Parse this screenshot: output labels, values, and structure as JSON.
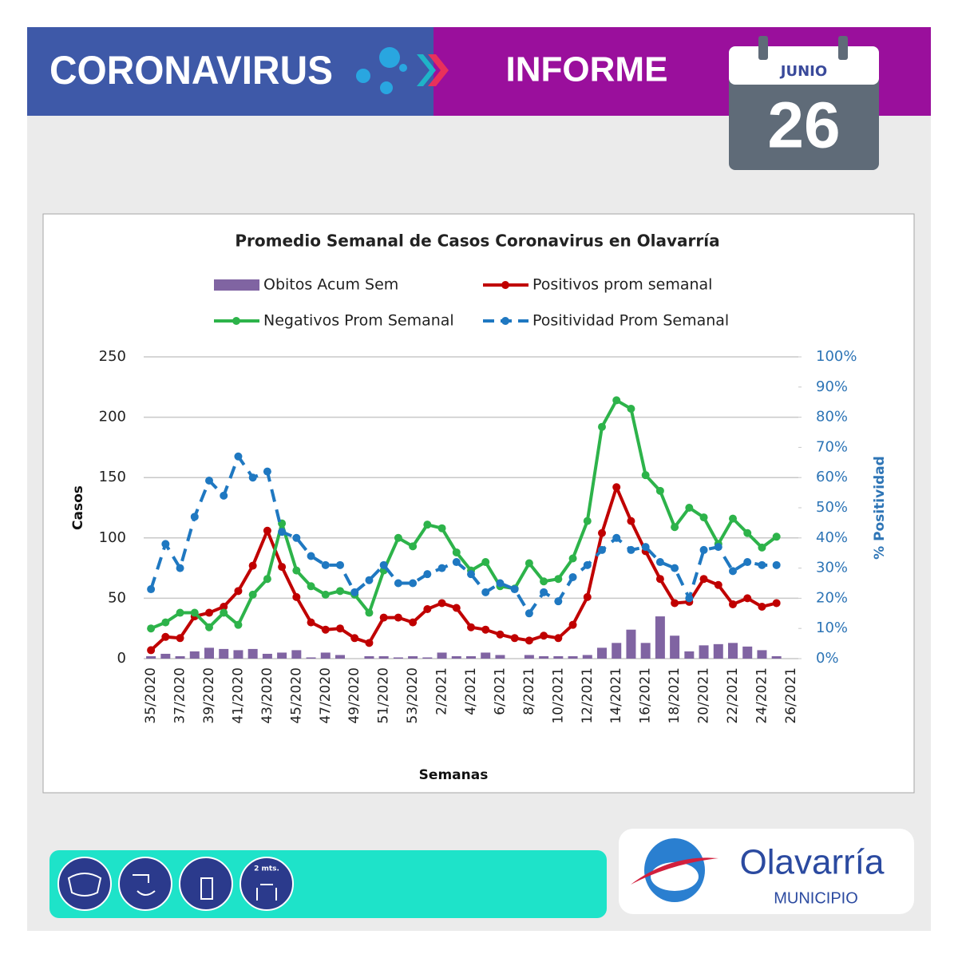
{
  "header": {
    "title": "CORONAVIRUS",
    "subtitle": "INFORME",
    "month": "JUNIO",
    "day": "26"
  },
  "chart_data": {
    "type": "combo",
    "title": "Promedio Semanal de Casos Coronavirus en Olavarría",
    "x_label": "Semanas",
    "y_label": "Casos",
    "y2_label": "% Positividad",
    "categories": [
      "35/2020",
      null,
      "37/2020",
      null,
      "39/2020",
      null,
      "41/2020",
      null,
      "43/2020",
      null,
      "45/2020",
      null,
      "47/2020",
      null,
      "49/2020",
      null,
      "51/2020",
      null,
      "53/2020",
      null,
      "2/2021",
      null,
      "4/2021",
      null,
      "6/2021",
      null,
      "8/2021",
      null,
      "10/2021",
      null,
      "12/2021",
      null,
      "14/2021",
      null,
      "16/2021",
      null,
      "18/2021",
      null,
      "20/2021",
      null,
      "22/2021",
      null,
      "24/2021",
      null,
      "26/2021"
    ],
    "series": [
      {
        "name": "Obitos Acum Sem",
        "type": "bar",
        "color": "#8064a2",
        "values": [
          2,
          4,
          2,
          6,
          9,
          8,
          7,
          8,
          4,
          5,
          7,
          1,
          5,
          3,
          0,
          2,
          2,
          1,
          2,
          1,
          5,
          2,
          2,
          5,
          3,
          0,
          3,
          2,
          2,
          2,
          3,
          9,
          13,
          24,
          13,
          35,
          19,
          6,
          11,
          12,
          13,
          10,
          7,
          2,
          null
        ]
      },
      {
        "name": "Positivos prom semanal",
        "type": "line",
        "color": "#c00000",
        "values": [
          7,
          18,
          17,
          35,
          38,
          43,
          56,
          77,
          106,
          76,
          51,
          30,
          24,
          25,
          17,
          13,
          34,
          34,
          30,
          41,
          46,
          42,
          26,
          24,
          20,
          17,
          15,
          19,
          17,
          28,
          51,
          104,
          142,
          114,
          89,
          66,
          46,
          47,
          66,
          61,
          45,
          50,
          43,
          46,
          null
        ]
      },
      {
        "name": "Negativos Prom Semanal",
        "type": "line",
        "color": "#2db34a",
        "values": [
          25,
          30,
          38,
          38,
          26,
          38,
          28,
          53,
          66,
          112,
          73,
          60,
          53,
          56,
          53,
          38,
          73,
          100,
          93,
          111,
          108,
          88,
          73,
          80,
          60,
          58,
          79,
          64,
          66,
          83,
          114,
          192,
          214,
          207,
          152,
          139,
          109,
          125,
          117,
          95,
          116,
          104,
          92,
          101,
          null
        ]
      },
      {
        "name": "Positividad Prom Semanal",
        "type": "line",
        "color": "#1f78c1",
        "axis": "y2",
        "dashed": true,
        "values": [
          23,
          38,
          30,
          47,
          59,
          54,
          67,
          60,
          62,
          42,
          40,
          34,
          31,
          31,
          22,
          26,
          31,
          25,
          25,
          28,
          30,
          32,
          28,
          22,
          25,
          23,
          15,
          22,
          19,
          27,
          31,
          36,
          40,
          36,
          37,
          32,
          30,
          20,
          36,
          37,
          29,
          32,
          31,
          31,
          null
        ]
      }
    ],
    "ylim": [
      0,
      250
    ],
    "yticks": [
      0,
      50,
      100,
      150,
      200,
      250
    ],
    "y2lim": [
      0,
      100
    ],
    "y2ticks": [
      {
        "value": 0,
        "label": "0%"
      },
      {
        "value": 10,
        "label": "10%"
      },
      {
        "value": 20,
        "label": "20%"
      },
      {
        "value": 30,
        "label": "30%"
      },
      {
        "value": 40,
        "label": "40%"
      },
      {
        "value": 50,
        "label": "50%"
      },
      {
        "value": 60,
        "label": "60%"
      },
      {
        "value": 70,
        "label": "70%"
      },
      {
        "value": 80,
        "label": "80%"
      },
      {
        "value": 90,
        "label": "90%"
      },
      {
        "value": 100,
        "label": "100%"
      }
    ],
    "grid": true
  },
  "footer": {
    "icon_text": "2 mts.",
    "logo": "Olavarría",
    "logo_sub": "MUNICIPIO"
  }
}
